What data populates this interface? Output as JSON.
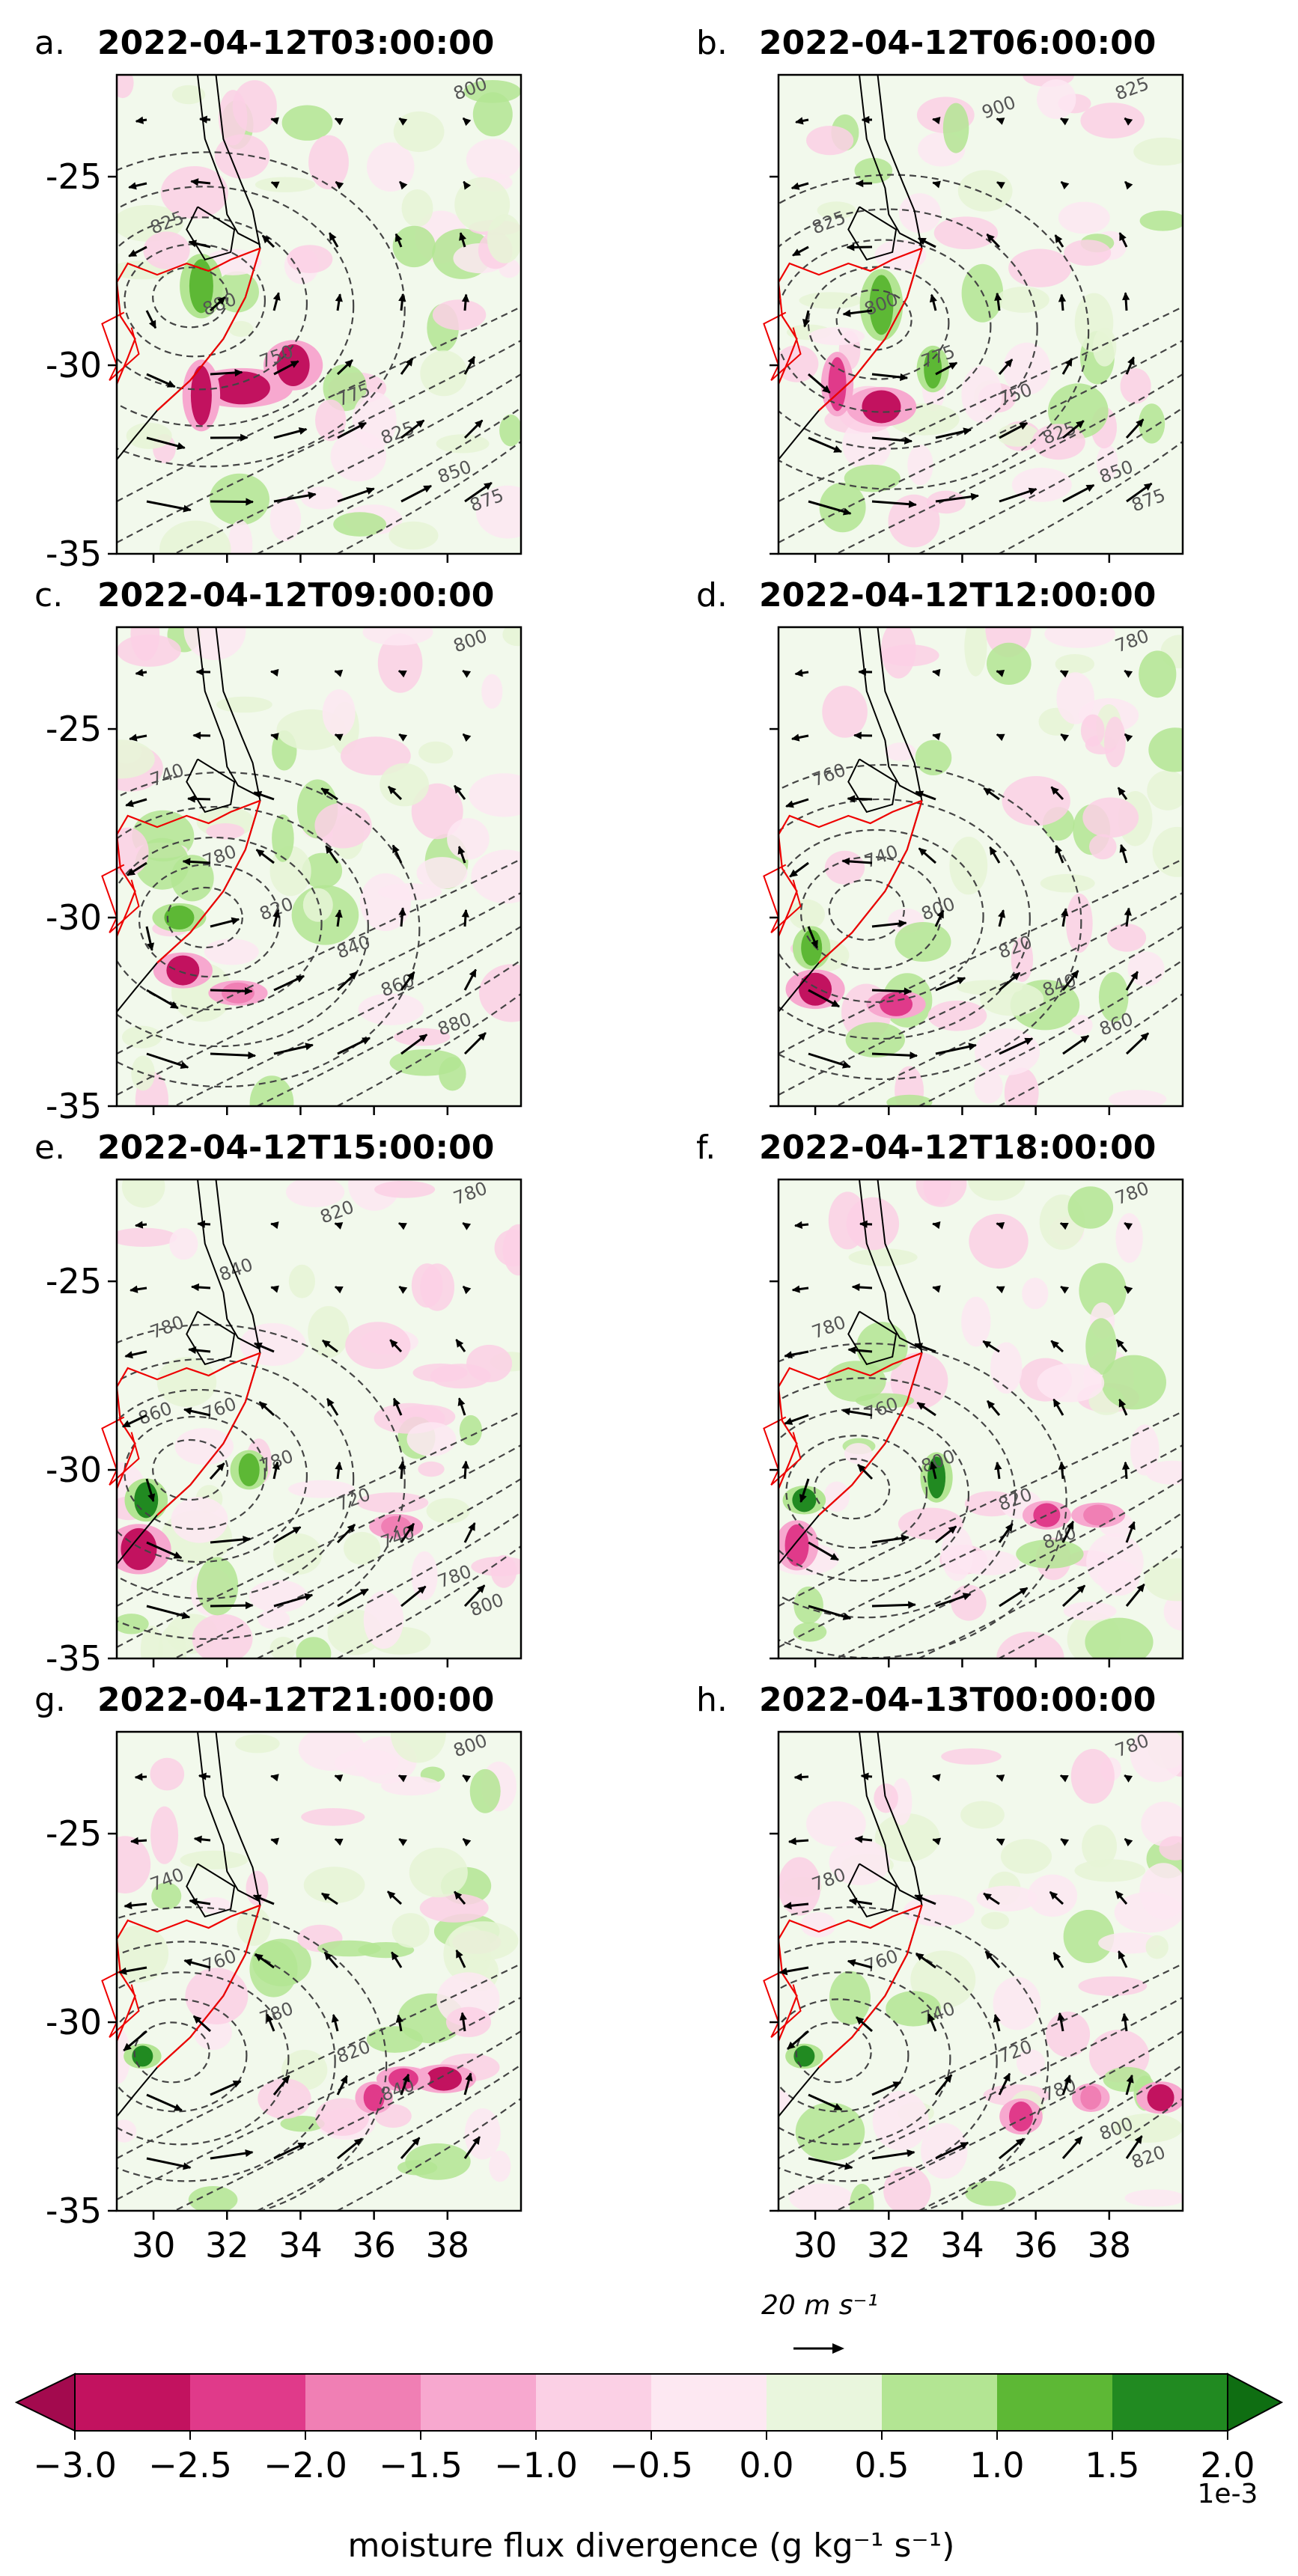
{
  "chart_data": {
    "type": "heatmap",
    "description_kind": "8-panel contour + quiver maps",
    "panels": [
      {
        "letter": "a.",
        "time": "2022-04-12T03:00:00",
        "contour_labels": [
          "800",
          "825",
          "880",
          "750",
          "775",
          "825",
          "850",
          "875"
        ]
      },
      {
        "letter": "b.",
        "time": "2022-04-12T06:00:00",
        "contour_labels": [
          "825",
          "825",
          "800",
          "775",
          "750",
          "825",
          "850",
          "875",
          "900"
        ]
      },
      {
        "letter": "c.",
        "time": "2022-04-12T09:00:00",
        "contour_labels": [
          "800",
          "740",
          "780",
          "820",
          "840",
          "860",
          "880"
        ]
      },
      {
        "letter": "d.",
        "time": "2022-04-12T12:00:00",
        "contour_labels": [
          "780",
          "760",
          "740",
          "800",
          "820",
          "840",
          "860"
        ]
      },
      {
        "letter": "e.",
        "time": "2022-04-12T15:00:00",
        "contour_labels": [
          "780",
          "780",
          "760",
          "780",
          "720",
          "740",
          "780",
          "800",
          "820",
          "840",
          "860"
        ]
      },
      {
        "letter": "f.",
        "time": "2022-04-12T18:00:00",
        "contour_labels": [
          "780",
          "780",
          "760",
          "800",
          "820",
          "840"
        ]
      },
      {
        "letter": "g.",
        "time": "2022-04-12T21:00:00",
        "contour_labels": [
          "800",
          "740",
          "760",
          "780",
          "820",
          "840"
        ]
      },
      {
        "letter": "h.",
        "time": "2022-04-13T00:00:00",
        "contour_labels": [
          "780",
          "780",
          "760",
          "740",
          "720",
          "780",
          "800",
          "820"
        ]
      }
    ],
    "y_ticks": [
      "-25",
      "-30",
      "-35"
    ],
    "y_values": [
      -25,
      -30,
      -35
    ],
    "ylim": [
      -35,
      -22.3
    ],
    "x_ticks": [
      "30",
      "32",
      "34",
      "36",
      "38"
    ],
    "x_values": [
      30,
      32,
      34,
      36,
      38
    ],
    "xlim": [
      29,
      40
    ],
    "quiver_key_label": "20 m s⁻¹",
    "colorbar": {
      "label": "moisture flux divergence (g kg⁻¹ s⁻¹)",
      "multiplier": "1e-3",
      "tick_labels": [
        "−3.0",
        "−2.5",
        "−2.0",
        "−1.5",
        "−1.0",
        "−0.5",
        "0.0",
        "0.5",
        "1.0",
        "1.5",
        "2.0"
      ],
      "boundaries": [
        -3.0,
        -2.5,
        -2.0,
        -1.5,
        -1.0,
        -0.5,
        0.0,
        0.5,
        1.0,
        1.5,
        2.0
      ],
      "colors": [
        "#c2125f",
        "#e03a8a",
        "#f07fb4",
        "#f7a8cf",
        "#fbd0e5",
        "#fde8f2",
        "#e9f6dd",
        "#b3e593",
        "#5db835",
        "#218a21"
      ],
      "extend": "both"
    },
    "grid": false
  }
}
